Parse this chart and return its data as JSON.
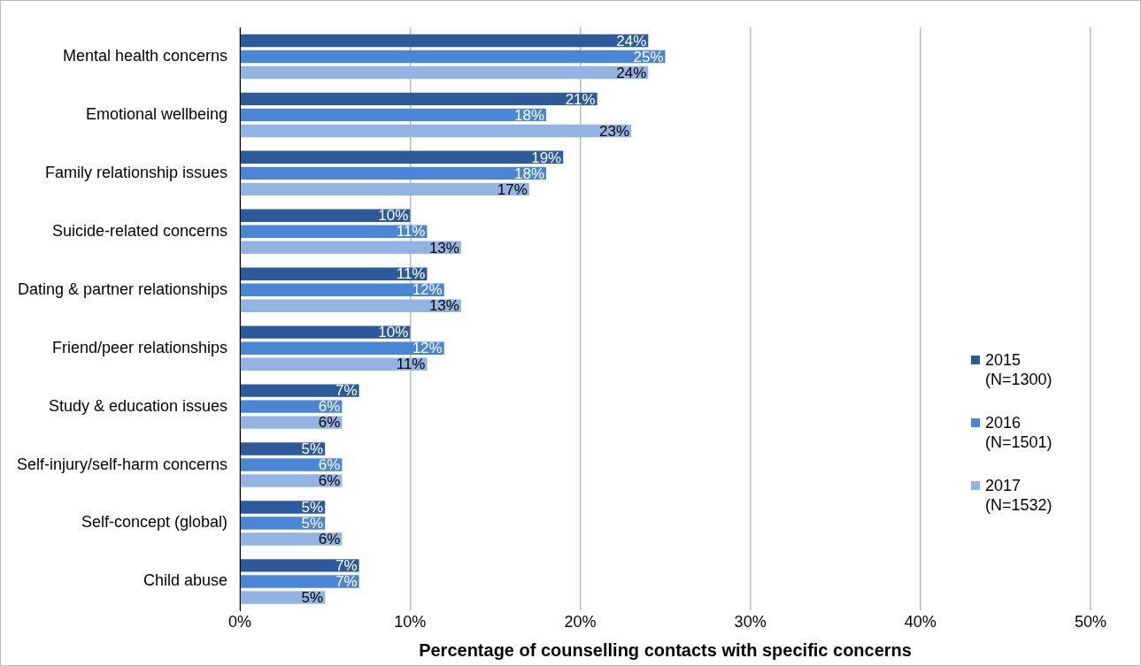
{
  "chart_data": {
    "type": "bar",
    "orientation": "horizontal",
    "xlabel": "Percentage of counselling contacts with specific concerns",
    "categories": [
      "Mental health concerns",
      "Emotional wellbeing",
      "Family relationship issues",
      "Suicide-related concerns",
      "Dating & partner relationships",
      "Friend/peer relationships",
      "Study & education issues",
      "Self-injury/self-harm concerns",
      "Self-concept (global)",
      "Child abuse"
    ],
    "series": [
      {
        "name": "2015 (N=1300)",
        "color": "#2c5a9a",
        "values": [
          24,
          21,
          19,
          10,
          11,
          10,
          7,
          5,
          5,
          7
        ],
        "value_labels": [
          "24%",
          "21%",
          "19%",
          "10%",
          "11%",
          "10%",
          "7%",
          "5%",
          "5%",
          "7%"
        ]
      },
      {
        "name": "2016 (N=1501)",
        "color": "#4a86d4",
        "values": [
          25,
          18,
          18,
          11,
          12,
          12,
          6,
          6,
          5,
          7
        ],
        "value_labels": [
          "25%",
          "18%",
          "18%",
          "11%",
          "12%",
          "12%",
          "6%",
          "6%",
          "5%",
          "7%"
        ]
      },
      {
        "name": "2017 (N=1532)",
        "color": "#93b4e2",
        "values": [
          24,
          23,
          17,
          13,
          13,
          11,
          6,
          6,
          6,
          5
        ],
        "value_labels": [
          "24%",
          "23%",
          "17%",
          "13%",
          "13%",
          "11%",
          "6%",
          "6%",
          "6%",
          "5%"
        ]
      }
    ],
    "xlim": [
      0,
      50
    ],
    "xticks": [
      {
        "value": 0,
        "label": "0%"
      },
      {
        "value": 10,
        "label": "10%"
      },
      {
        "value": 20,
        "label": "20%"
      },
      {
        "value": 30,
        "label": "30%"
      },
      {
        "value": 40,
        "label": "40%"
      },
      {
        "value": 50,
        "label": "50%"
      }
    ],
    "grid": "x",
    "legend": "right"
  }
}
